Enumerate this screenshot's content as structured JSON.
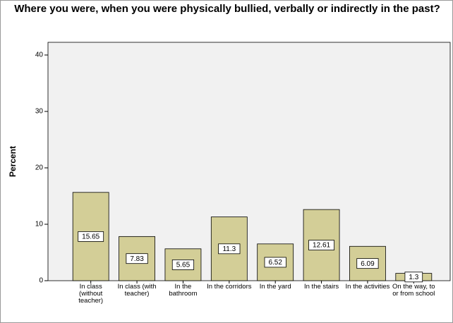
{
  "chart_data": {
    "type": "bar",
    "title": "Where you were, when you were physically bullied, verbally or indirectly in the past?",
    "y_label": "Percent",
    "categories": [
      "In class (without teacher)",
      "In class (with teacher)",
      "In the bathroom",
      "In the corridors",
      "In the yard",
      "In the stairs",
      "In the activities",
      "On the way, to or from school"
    ],
    "values": [
      15.65,
      7.83,
      5.65,
      11.3,
      6.52,
      12.61,
      6.09,
      1.3
    ],
    "color": "#d3ce97",
    "ylim": [
      0,
      42.25
    ],
    "yticks": [
      0,
      10,
      20,
      30,
      40
    ],
    "grid": false
  }
}
